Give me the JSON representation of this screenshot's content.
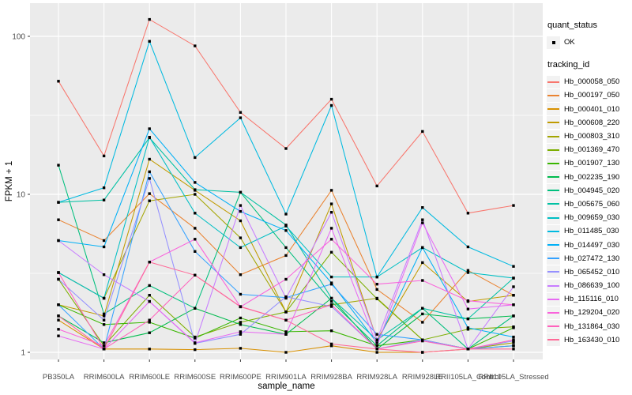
{
  "theme": {
    "panel_bg": "#EBEBEB",
    "grid_color": "#FFFFFF",
    "axis_text_color": "#4D4D4D",
    "axis_title_color": "#000000",
    "tick_color": "#333333",
    "point_color": "#000000",
    "legend_key_bg": "#F2F2F2"
  },
  "legend": {
    "quant_status": {
      "title": "quant_status",
      "items": [
        {
          "label": "OK",
          "symbol": "point"
        }
      ]
    },
    "tracking_id": {
      "title": "tracking_id"
    }
  },
  "chart_data": {
    "type": "line",
    "xlabel": "sample_name",
    "ylabel": "FPKM + 1",
    "y_scale": "log10",
    "ylim": [
      0.88,
      160
    ],
    "y_major_ticks": [
      1,
      10,
      100
    ],
    "y_tick_labels": [
      "1",
      "10",
      "100"
    ],
    "y_minor_gridlines": [
      3.1623,
      31.623
    ],
    "grid": "white major+minor on gray panel",
    "legend_position": "right",
    "categories": [
      "PB350LA",
      "RRIM600LA",
      "RRIM600LE",
      "RRIM600SE",
      "RRIM600PE",
      "RRIM901LA",
      "RRIM928BA",
      "RRIM928LA",
      "RRIM928LE",
      "RRII105LA_Control",
      "RRII105LA_Stressed"
    ],
    "series": [
      {
        "name": "Hb_000058_050",
        "color": "#F8766D",
        "values": [
          52,
          17.5,
          128,
          87,
          33,
          19.5,
          40,
          11.3,
          25,
          7.6,
          8.5
        ]
      },
      {
        "name": "Hb_000197_050",
        "color": "#EA8331",
        "values": [
          6.9,
          5.1,
          10.1,
          6.1,
          3.1,
          4.1,
          10.6,
          2.5,
          1.55,
          3.3,
          2.3
        ]
      },
      {
        "name": "Hb_000401_010",
        "color": "#D89000",
        "values": [
          1.6,
          1.05,
          1.05,
          1.04,
          1.06,
          1.0,
          1.1,
          1.0,
          1.0,
          1.05,
          1.1
        ]
      },
      {
        "name": "Hb_000608_220",
        "color": "#C09B00",
        "values": [
          2.0,
          1.7,
          16.7,
          10.6,
          6.8,
          1.8,
          8.7,
          1.2,
          3.7,
          2.1,
          2.3
        ]
      },
      {
        "name": "Hb_000803_310",
        "color": "#A3A500",
        "values": [
          3.2,
          2.2,
          9.1,
          10.0,
          5.3,
          1.8,
          2.0,
          2.2,
          1.2,
          1.05,
          1.15
        ]
      },
      {
        "name": "Hb_001369_470",
        "color": "#7CAE00",
        "values": [
          2.9,
          1.1,
          2.3,
          1.25,
          1.55,
          1.8,
          4.3,
          2.18,
          1.2,
          1.4,
          1.45
        ]
      },
      {
        "name": "Hb_001907_130",
        "color": "#39B600",
        "values": [
          2.0,
          1.5,
          1.55,
          1.23,
          1.65,
          1.35,
          1.37,
          1.1,
          1.2,
          1.05,
          1.43
        ]
      },
      {
        "name": "Hb_002235_190",
        "color": "#00BB4E",
        "values": [
          1.7,
          1.15,
          1.33,
          1.9,
          1.5,
          1.3,
          2.2,
          1.05,
          1.75,
          1.63,
          1.7
        ]
      },
      {
        "name": "Hb_004945_020",
        "color": "#00BF7D",
        "values": [
          15.3,
          1.75,
          2.65,
          1.9,
          10.3,
          4.6,
          2.1,
          1.1,
          1.9,
          1.05,
          1.7
        ]
      },
      {
        "name": "Hb_005675_060",
        "color": "#00C1A3",
        "values": [
          8.9,
          9.2,
          22.8,
          10.7,
          10.3,
          6.4,
          2.2,
          1.2,
          1.9,
          1.63,
          2.95
        ]
      },
      {
        "name": "Hb_009659_030",
        "color": "#00BFC4",
        "values": [
          3.2,
          2.2,
          23,
          7.6,
          4.6,
          6.3,
          3.0,
          3.0,
          4.6,
          3.2,
          2.95
        ]
      },
      {
        "name": "Hb_011485_030",
        "color": "#00BAE0",
        "values": [
          8.9,
          11,
          93,
          17.1,
          30.5,
          7.5,
          36.5,
          3.0,
          8.25,
          4.65,
          3.5
        ]
      },
      {
        "name": "Hb_014497_030",
        "color": "#00B0F6",
        "values": [
          5.1,
          4.65,
          26,
          11.9,
          7.8,
          5.9,
          2.75,
          1.15,
          4.6,
          1.43,
          1.25
        ]
      },
      {
        "name": "Hb_027472_130",
        "color": "#35A2FF",
        "values": [
          2.0,
          1.05,
          13.9,
          4.35,
          2.33,
          2.22,
          2.7,
          1.3,
          1.2,
          1.05,
          1.1
        ]
      },
      {
        "name": "Hb_065452_010",
        "color": "#9590FF",
        "values": [
          2.9,
          1.6,
          12.6,
          1.14,
          1.3,
          2.25,
          1.95,
          1.05,
          1.2,
          1.05,
          1.18
        ]
      },
      {
        "name": "Hb_086639_100",
        "color": "#C77CFF",
        "values": [
          5.1,
          3.1,
          2.1,
          1.14,
          8.5,
          2.2,
          7.7,
          1.2,
          6.9,
          1.05,
          2.6
        ]
      },
      {
        "name": "Hb_115116_010",
        "color": "#E76BF3",
        "values": [
          1.27,
          1.05,
          2.1,
          1.15,
          1.35,
          1.3,
          6.1,
          1.1,
          6.6,
          1.88,
          2.0
        ]
      },
      {
        "name": "Hb_129204_020",
        "color": "#FA62DB",
        "values": [
          1.4,
          1.1,
          3.73,
          5.2,
          1.94,
          2.9,
          5.2,
          2.7,
          2.85,
          2.12,
          2.0
        ]
      },
      {
        "name": "Hb_131864_030",
        "color": "#FF62BC",
        "values": [
          3.2,
          1.05,
          1.6,
          3.08,
          1.95,
          1.6,
          2.0,
          1.05,
          1.18,
          1.05,
          1.2
        ]
      },
      {
        "name": "Hb_163430_010",
        "color": "#FF6A98",
        "values": [
          1.7,
          1.05,
          3.73,
          3.08,
          1.94,
          1.6,
          1.13,
          1.05,
          1.0,
          1.05,
          1.05
        ]
      }
    ]
  }
}
